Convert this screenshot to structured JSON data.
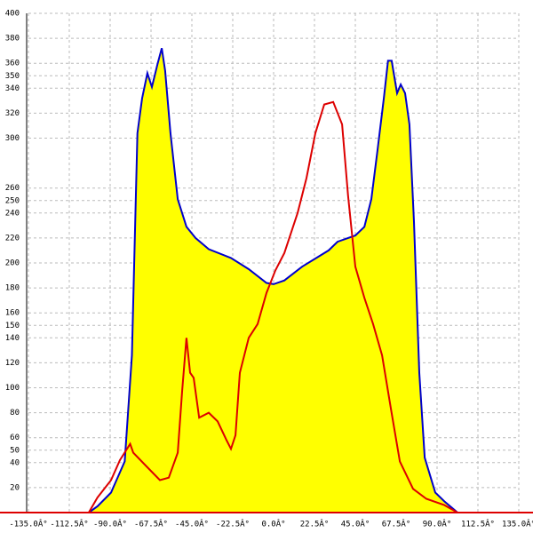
{
  "chart_data": {
    "type": "line",
    "fill_color": "#ffff00",
    "xlim": [
      -135,
      135
    ],
    "ylim": [
      0,
      400
    ],
    "xticks": [
      {
        "value": -135,
        "label": "-135.0Â°"
      },
      {
        "value": -112.5,
        "label": "-112.5Â°"
      },
      {
        "value": -90,
        "label": "-90.0Â°"
      },
      {
        "value": -67.5,
        "label": "-67.5Â°"
      },
      {
        "value": -45,
        "label": "-45.0Â°"
      },
      {
        "value": -22.5,
        "label": "-22.5Â°"
      },
      {
        "value": 0,
        "label": "0.0Â°"
      },
      {
        "value": 22.5,
        "label": "22.5Â°"
      },
      {
        "value": 45,
        "label": "45.0Â°"
      },
      {
        "value": 67.5,
        "label": "67.5Â°"
      },
      {
        "value": 90,
        "label": "90.0Â°"
      },
      {
        "value": 112.5,
        "label": "112.5Â°"
      },
      {
        "value": 135,
        "label": "135.0Â°"
      }
    ],
    "yticks": [
      20,
      40,
      50,
      60,
      80,
      100,
      120,
      140,
      150,
      160,
      180,
      200,
      220,
      240,
      250,
      260,
      300,
      320,
      340,
      350,
      360,
      380,
      400
    ],
    "grid": true,
    "series": [
      {
        "color": "#0000cc",
        "filled": true,
        "x": [
          -101.8,
          -97,
          -89.5,
          -82,
          -78,
          -75,
          -72.4,
          -69.5,
          -67,
          -64,
          -61.6,
          -59.7,
          -56.8,
          -52.8,
          -48,
          -43,
          -35.7,
          -23.5,
          -13.7,
          -3.9,
          0,
          5.9,
          15.7,
          30.3,
          35.2,
          45,
          50,
          53.8,
          57.2,
          60.7,
          63,
          65,
          68,
          70,
          72.4,
          74.8,
          77.3,
          80.2,
          83.2,
          89,
          94,
          101.3
        ],
        "values": [
          0,
          5,
          16,
          41,
          126,
          304,
          332,
          352,
          341,
          359,
          372,
          354,
          304,
          251,
          229,
          220,
          211,
          204,
          195,
          184,
          183,
          186,
          197,
          210,
          217,
          222,
          229,
          251,
          290,
          332,
          362,
          362,
          336,
          343,
          336,
          311,
          233,
          112,
          44,
          16,
          9,
          0
        ]
      },
      {
        "color": "#dd0000",
        "filled": false,
        "x": [
          -101.8,
          -97,
          -89.5,
          -84.6,
          -79,
          -77.3,
          -70,
          -62.6,
          -57.7,
          -52.8,
          -50.4,
          -48,
          -46,
          -44,
          -41,
          -35.7,
          -30.8,
          -25.9,
          -23.5,
          -21,
          -18.6,
          -13.7,
          -8.8,
          -3.9,
          1,
          5.9,
          13.2,
          18.1,
          23,
          27.9,
          32.8,
          37.7,
          41,
          45,
          50,
          54.8,
          59.7,
          64.6,
          69.5,
          76.8,
          84.1,
          94,
          101.3
        ],
        "values": [
          0,
          12,
          26,
          42,
          55,
          48,
          37,
          26,
          28,
          48,
          97,
          140,
          112,
          108,
          76,
          80,
          73,
          58,
          51,
          62,
          112,
          140,
          151,
          176,
          194,
          208,
          240,
          268,
          304,
          327,
          329,
          311,
          254,
          197,
          172,
          151,
          126,
          83,
          41,
          19,
          11,
          6,
          0
        ]
      }
    ]
  }
}
